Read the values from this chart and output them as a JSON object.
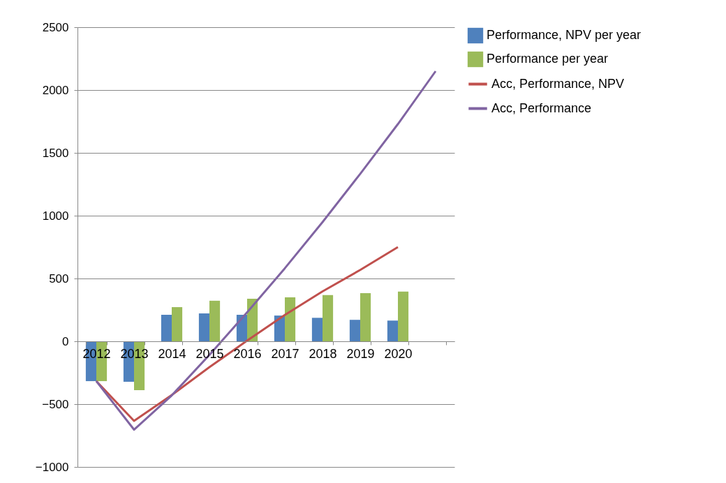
{
  "chart_data": {
    "type": "bar",
    "categories": [
      "2012",
      "2013",
      "2014",
      "2015",
      "2016",
      "2017",
      "2018",
      "2019",
      "2020",
      null
    ],
    "series": [
      {
        "name": "Performance, NPV per year",
        "color": "#4f81bd",
        "values": [
          -317,
          -322,
          211,
          222,
          211,
          205,
          187,
          171,
          165,
          null
        ]
      },
      {
        "name": "Performance per year",
        "color": "#9bbb59",
        "values": [
          -317,
          -389,
          272,
          323,
          339,
          350,
          368,
          384,
          396,
          null
        ]
      },
      {
        "name": "Acc, Performance, NPV",
        "type": "line",
        "color": "#c0504d",
        "values": [
          -317,
          -633,
          -428,
          -206,
          5,
          210,
          397,
          568,
          750,
          null
        ]
      },
      {
        "name": "Acc, Performance",
        "type": "line",
        "color": "#8064a2",
        "values": [
          -317,
          -703,
          -431,
          -108,
          231,
          581,
          949,
          1333,
          1729,
          2150
        ]
      }
    ],
    "ylim": [
      -1000,
      2500
    ],
    "yticks": [
      -1000,
      -500,
      0,
      500,
      1000,
      1500,
      2000,
      2500
    ],
    "grid": "y",
    "legend": "right"
  }
}
